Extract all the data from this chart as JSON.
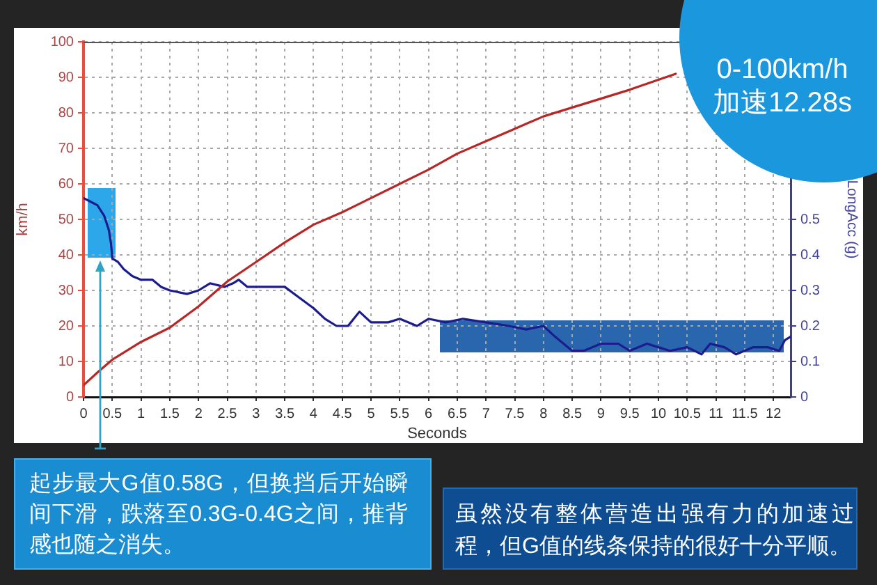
{
  "chart_data": {
    "type": "line",
    "xlabel": "Seconds",
    "ylabel": "km/h",
    "y2label": "LongAcc (g)",
    "xlim": [
      0,
      12.3
    ],
    "xticks": [
      0,
      0.5,
      1,
      1.5,
      2,
      2.5,
      3,
      3.5,
      4,
      4.5,
      5,
      5.5,
      6,
      6.5,
      7,
      7.5,
      8,
      8.5,
      9,
      9.5,
      10,
      10.5,
      11,
      11.5,
      12
    ],
    "ylim": [
      0,
      100
    ],
    "yticks": [
      0,
      10,
      20,
      30,
      40,
      50,
      60,
      70,
      80,
      90,
      100
    ],
    "y2lim": [
      0,
      1
    ],
    "y2ticks": [
      0,
      0.1,
      0.2,
      0.3,
      0.4,
      0.5
    ],
    "series": [
      {
        "color": "#b82626",
        "x": [
          0,
          0.25,
          0.5,
          1,
          1.5,
          2,
          2.5,
          3,
          3.5,
          4,
          4.5,
          5,
          5.5,
          6,
          6.5,
          7,
          7.5,
          8,
          8.5,
          9,
          9.5,
          10,
          10.3
        ],
        "values": [
          3.3,
          7,
          10.5,
          15.5,
          19.5,
          25.5,
          32.5,
          38,
          43.5,
          48.5,
          52,
          56,
          60,
          64,
          68.5,
          72,
          75.5,
          79,
          81.5,
          84,
          86.5,
          89.3,
          91
        ]
      },
      {
        "color": "#1c1c8e",
        "axis": "y2",
        "x": [
          0,
          0.12,
          0.24,
          0.36,
          0.44,
          0.48,
          0.5,
          0.6,
          0.7,
          0.85,
          1,
          1.2,
          1.35,
          1.5,
          1.8,
          2,
          2.2,
          2.45,
          2.6,
          2.7,
          2.85,
          3,
          3.3,
          3.5,
          3.75,
          4,
          4.2,
          4.4,
          4.6,
          4.8,
          5,
          5.3,
          5.5,
          5.8,
          6,
          6.3,
          6.6,
          7,
          7.4,
          7.7,
          8,
          8.2,
          8.5,
          8.7,
          9,
          9.3,
          9.5,
          9.8,
          10,
          10.2,
          10.5,
          10.75,
          10.9,
          11.15,
          11.35,
          11.65,
          11.9,
          12.1,
          12.2,
          12.3
        ],
        "values": [
          0.56,
          0.55,
          0.54,
          0.51,
          0.47,
          0.43,
          0.39,
          0.38,
          0.36,
          0.34,
          0.33,
          0.33,
          0.31,
          0.3,
          0.29,
          0.3,
          0.32,
          0.31,
          0.32,
          0.33,
          0.31,
          0.31,
          0.31,
          0.31,
          0.28,
          0.25,
          0.22,
          0.2,
          0.2,
          0.24,
          0.21,
          0.21,
          0.22,
          0.2,
          0.22,
          0.21,
          0.22,
          0.21,
          0.2,
          0.19,
          0.2,
          0.17,
          0.13,
          0.13,
          0.15,
          0.15,
          0.13,
          0.15,
          0.14,
          0.13,
          0.14,
          0.12,
          0.15,
          0.14,
          0.12,
          0.14,
          0.14,
          0.13,
          0.16,
          0.17
        ]
      }
    ],
    "grid": true,
    "legend": false,
    "marker": "none",
    "line_style": "solid",
    "annotations": [
      "0-100km/h\n加速12.28s",
      "起步最大G值0.58G，但换挡后开始瞬间下滑，跌落至0.3G-0.4G之间，推背感也随之消失。",
      "虽然没有整体营造出强有力的加速过程，但G值的线条保持的很好十分平顺。"
    ]
  }
}
